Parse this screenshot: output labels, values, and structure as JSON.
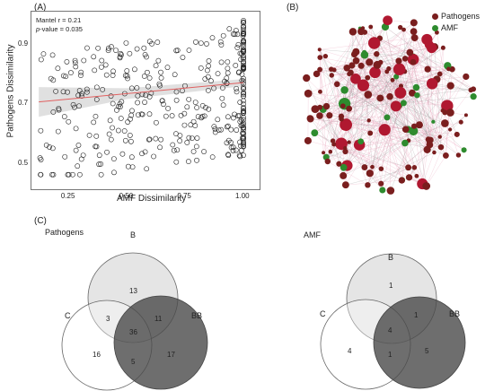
{
  "panels": {
    "a": {
      "label": "(A)",
      "chart_data": {
        "type": "scatter",
        "xlabel": "AMF Dissimilarity",
        "ylabel": "Pathogens Dissimilarity",
        "xlim": [
          0.1,
          1.05
        ],
        "ylim": [
          0.42,
          1.0
        ],
        "xticks": [
          0.25,
          0.5,
          0.75,
          1.0
        ],
        "xtick_labels": [
          "0.25",
          "0.50",
          "0.75",
          "1.00"
        ],
        "yticks": [
          0.5,
          0.7,
          0.9
        ],
        "ytick_labels": [
          "0.5",
          "0.7",
          "0.9"
        ],
        "mantel_text": "Mantel r = 0.21",
        "p_label": "p",
        "p_text": "-value = 0.035",
        "regression": {
          "x": [
            0.12,
            1.0
          ],
          "y": [
            0.705,
            0.77
          ],
          "color": "#e06060"
        }
      }
    },
    "b": {
      "label": "(B)",
      "legend": [
        {
          "label": "Pathogens",
          "color": "#7a1e1e"
        },
        {
          "label": "AMF",
          "color": "#2e8b2e"
        }
      ]
    },
    "c": {
      "label": "(C)",
      "venns": [
        {
          "title": "Pathogens",
          "sets": {
            "B": "B",
            "C": "C",
            "BB": "BB"
          },
          "regions": {
            "B_only": "13",
            "B_C": "3",
            "B_BB": "11",
            "all": "36",
            "C_only": "16",
            "C_BB": "5",
            "BB_only": "17"
          }
        },
        {
          "title": "AMF",
          "sets": {
            "B": "B",
            "C": "C",
            "BB": "BB"
          },
          "regions": {
            "B_only": "1",
            "B_C": "",
            "B_BB": "1",
            "all": "4",
            "C_only": "4",
            "C_BB": "1",
            "BB_only": "5"
          }
        }
      ]
    }
  }
}
